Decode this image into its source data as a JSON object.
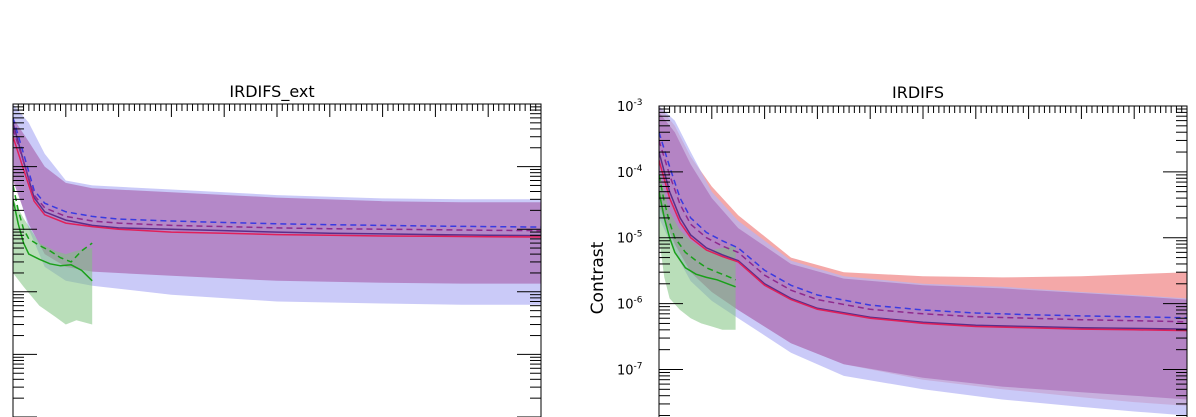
{
  "chart_data": [
    {
      "type": "area",
      "title": "IRDIFS_ext",
      "xlabel": "",
      "ylabel": "",
      "yscale": "log",
      "ylim": [
        1e-08,
        0.001
      ],
      "xlim": [
        0,
        1
      ],
      "grid": false,
      "bands": [
        {
          "color": "#b4b4f5",
          "opacity": 0.7,
          "x": [
            0.0,
            0.03,
            0.06,
            0.1,
            0.15,
            0.3,
            0.5,
            0.7,
            0.85,
            1.0
          ],
          "upper": [
            0.001,
            0.0005,
            0.00016,
            6e-05,
            5e-05,
            4.3e-05,
            3.5e-05,
            3.1e-05,
            3e-05,
            3e-05
          ],
          "lower": [
            8e-05,
            1e-05,
            2.5e-06,
            1.5e-06,
            1.25e-06,
            9e-07,
            7e-07,
            6.5e-07,
            6.2e-07,
            6.2e-07
          ]
        },
        {
          "color": "#b07cbf",
          "opacity": 0.85,
          "x": [
            0.0,
            0.03,
            0.06,
            0.1,
            0.15,
            0.3,
            0.5,
            0.7,
            0.85,
            1.0
          ],
          "upper": [
            0.0006,
            0.00025,
            0.0001,
            5.5e-05,
            4.5e-05,
            3.9e-05,
            3.2e-05,
            2.8e-05,
            2.7e-05,
            2.7e-05
          ],
          "lower": [
            6e-05,
            1.2e-05,
            4e-06,
            2.5e-06,
            2.1e-06,
            1.8e-06,
            1.5e-06,
            1.4e-06,
            1.35e-06,
            1.35e-06
          ]
        },
        {
          "color": "#7fc27f",
          "opacity": 0.55,
          "x": [
            0.0,
            0.02,
            0.05,
            0.08,
            0.1,
            0.12,
            0.15
          ],
          "upper": [
            3e-05,
            1.5e-05,
            6e-06,
            4.5e-06,
            4e-06,
            4.5e-06,
            5e-06
          ],
          "lower": [
            2e-06,
            1.2e-06,
            6e-07,
            4e-07,
            3e-07,
            3.5e-07,
            3e-07
          ]
        }
      ],
      "series": [
        {
          "color": "#5a2e8a",
          "style": "solid",
          "x": [
            0.0,
            0.02,
            0.04,
            0.06,
            0.1,
            0.15,
            0.2,
            0.3,
            0.4,
            0.5,
            0.6,
            0.7,
            0.8,
            0.9,
            1.0
          ],
          "y": [
            0.0005,
            0.00012,
            3.2e-05,
            1.9e-05,
            1.4e-05,
            1.15e-05,
            1.05e-05,
            1e-05,
            9.5e-06,
            9e-06,
            8.6e-06,
            8.4e-06,
            8.2e-06,
            8e-06,
            7.9e-06
          ]
        },
        {
          "color": "#e0205a",
          "style": "solid",
          "x": [
            0.0,
            0.02,
            0.04,
            0.06,
            0.1,
            0.15,
            0.2,
            0.3,
            0.4,
            0.5,
            0.6,
            0.7,
            0.8,
            0.9,
            1.0
          ],
          "y": [
            0.0003,
            9e-05,
            2.8e-05,
            1.7e-05,
            1.25e-05,
            1.1e-05,
            1e-05,
            9e-06,
            8.6e-06,
            8.2e-06,
            8e-06,
            7.8e-06,
            7.7e-06,
            7.6e-06,
            7.5e-06
          ]
        },
        {
          "color": "#3a3ae0",
          "style": "dashed",
          "x": [
            0.0,
            0.02,
            0.04,
            0.06,
            0.1,
            0.15,
            0.2,
            0.3,
            0.4,
            0.5,
            0.6,
            0.7,
            0.8,
            0.9,
            1.0
          ],
          "y": [
            0.0006,
            0.00016,
            4.2e-05,
            2.6e-05,
            1.9e-05,
            1.6e-05,
            1.45e-05,
            1.35e-05,
            1.28e-05,
            1.22e-05,
            1.18e-05,
            1.15e-05,
            1.12e-05,
            1.1e-05,
            1.08e-05
          ]
        },
        {
          "color": "#8e2a8e",
          "style": "dashed",
          "x": [
            0.0,
            0.02,
            0.04,
            0.06,
            0.1,
            0.15,
            0.2,
            0.3,
            0.4,
            0.5,
            0.6,
            0.7,
            0.8,
            0.9,
            1.0
          ],
          "y": [
            0.0004,
            0.00012,
            3.5e-05,
            2.2e-05,
            1.6e-05,
            1.35e-05,
            1.25e-05,
            1.15e-05,
            1.1e-05,
            1.05e-05,
            1.02e-05,
            1e-05,
            9.8e-06,
            9.6e-06,
            9.5e-06
          ]
        },
        {
          "color": "#1aa01a",
          "style": "solid",
          "x": [
            0.0,
            0.01,
            0.02,
            0.03,
            0.05,
            0.07,
            0.09,
            0.11,
            0.13,
            0.15
          ],
          "y": [
            3e-05,
            1.2e-05,
            6e-06,
            4e-06,
            3.3e-06,
            2.8e-06,
            2.6e-06,
            2.7e-06,
            2.2e-06,
            1.5e-06
          ]
        },
        {
          "color": "#1aa01a",
          "style": "dashed",
          "x": [
            0.0,
            0.01,
            0.02,
            0.03,
            0.05,
            0.07,
            0.09,
            0.11,
            0.13,
            0.15
          ],
          "y": [
            5e-05,
            2e-05,
            1e-05,
            7e-06,
            5.5e-06,
            4.5e-06,
            3.5e-06,
            3e-06,
            4.5e-06,
            6e-06
          ]
        }
      ]
    },
    {
      "type": "area",
      "title": "IRDIFS",
      "xlabel": "",
      "ylabel": "Contrast",
      "yscale": "log",
      "ylim": [
        1.9e-08,
        0.001
      ],
      "xlim": [
        0,
        1
      ],
      "grid": false,
      "yticklabels": [
        {
          "value": 0.001,
          "base": "10",
          "exp": "-3"
        },
        {
          "value": 0.0001,
          "base": "10",
          "exp": "-4"
        },
        {
          "value": 1e-05,
          "base": "10",
          "exp": "-5"
        },
        {
          "value": 1e-06,
          "base": "10",
          "exp": "-6"
        },
        {
          "value": 1e-07,
          "base": "10",
          "exp": "-7"
        }
      ],
      "bands": [
        {
          "color": "#f08b8b",
          "opacity": 0.75,
          "x": [
            0.0,
            0.03,
            0.06,
            0.1,
            0.15,
            0.25,
            0.35,
            0.5,
            0.65,
            0.8,
            0.9,
            1.0
          ],
          "upper": [
            0.001,
            0.0005,
            0.00017,
            6e-05,
            2.2e-05,
            5e-06,
            3e-06,
            2.6e-06,
            2.5e-06,
            2.6e-06,
            2.8e-06,
            3e-06
          ],
          "lower": [
            3e-05,
            8e-06,
            3e-06,
            1.5e-06,
            8e-07,
            2.5e-07,
            1.2e-07,
            7e-08,
            5e-08,
            3.8e-08,
            3.2e-08,
            2.8e-08
          ]
        },
        {
          "color": "#b4b4f5",
          "opacity": 0.7,
          "x": [
            0.0,
            0.03,
            0.06,
            0.1,
            0.15,
            0.25,
            0.35,
            0.5,
            0.65,
            0.8,
            0.9,
            1.0
          ],
          "upper": [
            0.001,
            0.0006,
            0.0002,
            5e-05,
            1.8e-05,
            4.5e-06,
            2.6e-06,
            2e-06,
            1.8e-06,
            1.5e-06,
            1.35e-06,
            1.2e-06
          ],
          "lower": [
            2e-05,
            6e-06,
            2.2e-06,
            1.1e-06,
            6e-07,
            1.8e-07,
            8e-08,
            5e-08,
            3.5e-08,
            2.7e-08,
            2.3e-08,
            2e-08
          ]
        },
        {
          "color": "#b07cbf",
          "opacity": 0.85,
          "x": [
            0.0,
            0.03,
            0.06,
            0.1,
            0.15,
            0.25,
            0.35,
            0.5,
            0.65,
            0.8,
            0.9,
            1.0
          ],
          "upper": [
            0.0008,
            0.0004,
            0.00013,
            4e-05,
            1.4e-05,
            4e-06,
            2.4e-06,
            1.9e-06,
            1.7e-06,
            1.45e-06,
            1.3e-06,
            1.15e-06
          ],
          "lower": [
            3e-05,
            8e-06,
            3e-06,
            1.5e-06,
            8e-07,
            2.5e-07,
            1.2e-07,
            7.5e-08,
            5.5e-08,
            4.5e-08,
            4e-08,
            3.5e-08
          ]
        },
        {
          "color": "#7fc27f",
          "opacity": 0.55,
          "x": [
            0.0,
            0.01,
            0.02,
            0.04,
            0.06,
            0.08,
            0.1,
            0.12,
            0.145
          ],
          "upper": [
            0.0001,
            5e-05,
            2.5e-05,
            1.3e-05,
            9e-06,
            7e-06,
            6.5e-06,
            7e-06,
            7.5e-06
          ],
          "lower": [
            1e-05,
            2.5e-06,
            1.2e-06,
            8e-07,
            6e-07,
            5e-07,
            4.5e-07,
            4e-07,
            4e-07
          ]
        }
      ],
      "series": [
        {
          "color": "#5a2e8a",
          "style": "solid",
          "x": [
            0.0,
            0.02,
            0.04,
            0.06,
            0.09,
            0.12,
            0.15,
            0.2,
            0.25,
            0.3,
            0.4,
            0.5,
            0.6,
            0.7,
            0.8,
            0.9,
            1.0
          ],
          "y": [
            0.0002,
            5e-05,
            2e-05,
            1.1e-05,
            7e-06,
            5.5e-06,
            4.5e-06,
            2e-06,
            1.2e-06,
            8.5e-07,
            6.2e-07,
            5.2e-07,
            4.7e-07,
            4.5e-07,
            4.3e-07,
            4.2e-07,
            4.1e-07
          ]
        },
        {
          "color": "#e0205a",
          "style": "solid",
          "x": [
            0.0,
            0.02,
            0.04,
            0.06,
            0.09,
            0.12,
            0.15,
            0.2,
            0.25,
            0.3,
            0.4,
            0.5,
            0.6,
            0.7,
            0.8,
            0.9,
            1.0
          ],
          "y": [
            0.00015,
            4e-05,
            1.7e-05,
            1e-05,
            6.5e-06,
            5.2e-06,
            4.3e-06,
            1.9e-06,
            1.15e-06,
            8.2e-07,
            6e-07,
            5e-07,
            4.5e-07,
            4.3e-07,
            4.1e-07,
            4e-07,
            3.9e-07
          ]
        },
        {
          "color": "#3a3ae0",
          "style": "dashed",
          "x": [
            0.0,
            0.02,
            0.04,
            0.06,
            0.09,
            0.12,
            0.15,
            0.2,
            0.25,
            0.3,
            0.4,
            0.5,
            0.6,
            0.7,
            0.8,
            0.9,
            1.0
          ],
          "y": [
            0.0004,
            0.00012,
            4e-05,
            2e-05,
            1.2e-05,
            9e-06,
            7e-06,
            3.2e-06,
            1.9e-06,
            1.35e-06,
            9.5e-07,
            8e-07,
            7.2e-07,
            6.8e-07,
            6.5e-07,
            6.3e-07,
            6.1e-07
          ]
        },
        {
          "color": "#8e2a8e",
          "style": "dashed",
          "x": [
            0.0,
            0.02,
            0.04,
            0.06,
            0.09,
            0.12,
            0.15,
            0.2,
            0.25,
            0.3,
            0.4,
            0.5,
            0.6,
            0.7,
            0.8,
            0.9,
            1.0
          ],
          "y": [
            0.0003,
            9e-05,
            3.2e-05,
            1.6e-05,
            1e-05,
            7.5e-06,
            6e-06,
            2.7e-06,
            1.6e-06,
            1.15e-06,
            8.2e-07,
            7e-07,
            6.3e-07,
            6e-07,
            5.7e-07,
            5.5e-07,
            5.3e-07
          ]
        },
        {
          "color": "#1aa01a",
          "style": "solid",
          "x": [
            0.0,
            0.01,
            0.02,
            0.03,
            0.05,
            0.07,
            0.09,
            0.11,
            0.13,
            0.145
          ],
          "y": [
            5e-05,
            2e-05,
            1e-05,
            6e-06,
            3.5e-06,
            2.8e-06,
            2.5e-06,
            2.3e-06,
            2e-06,
            1.8e-06
          ]
        },
        {
          "color": "#1aa01a",
          "style": "dashed",
          "x": [
            0.0,
            0.01,
            0.02,
            0.03,
            0.05,
            0.07,
            0.09,
            0.11,
            0.13,
            0.145
          ],
          "y": [
            9e-05,
            3.5e-05,
            1.7e-05,
            1e-05,
            6e-06,
            4.5e-06,
            3.5e-06,
            3e-06,
            2.6e-06,
            2.3e-06
          ]
        }
      ]
    }
  ]
}
